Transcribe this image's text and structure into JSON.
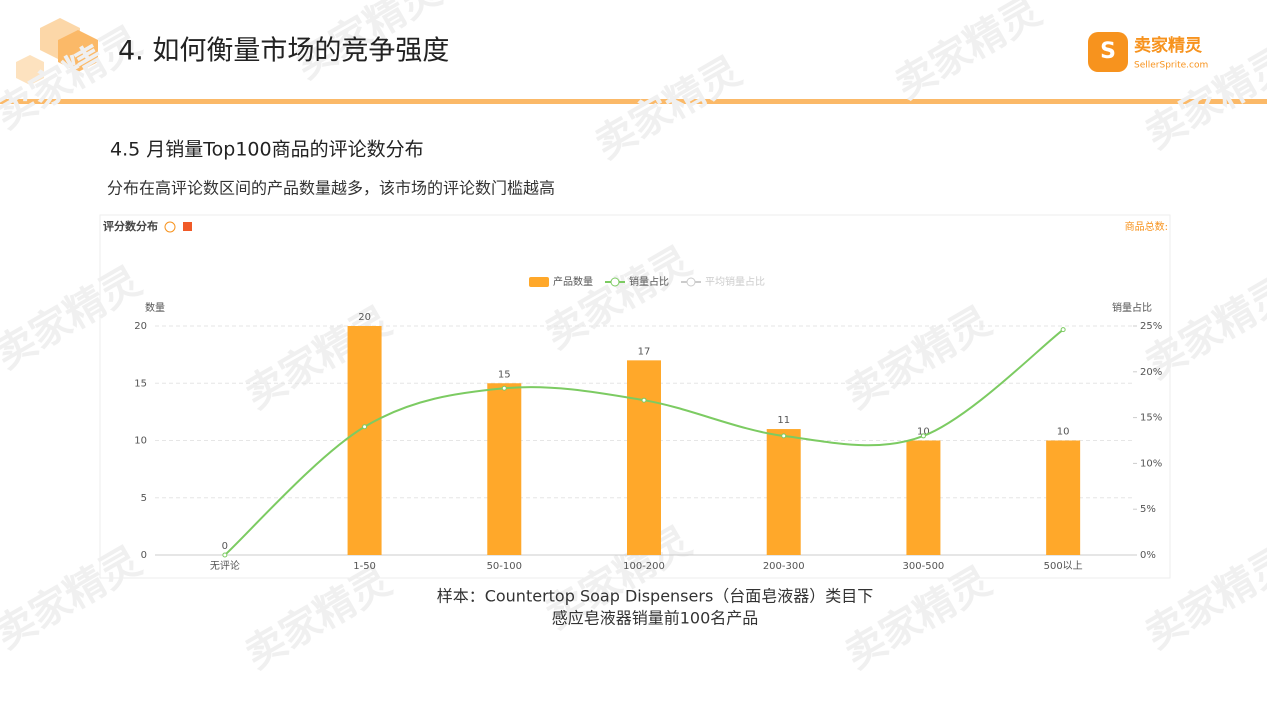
{
  "header": {
    "title": "4. 如何衡量市场的竞争强度",
    "logo_name": "卖家精灵",
    "logo_url": "SellerSprite.com"
  },
  "watermark": "卖家精灵",
  "section_title": "4.5 月销量Top100商品的评论数分布",
  "subtitle": "分布在高评论数区间的产品数量越多，该市场的评论数门槛越高",
  "caption": [
    "样本：Countertop Soap Dispensers（台面皂液器）类目下",
    "感应皂液器销量前100名产品"
  ],
  "chart_data": {
    "type": "bar",
    "title": "评分数分布",
    "total_label": "商品总数:",
    "categories": [
      "无评论",
      "1-50",
      "50-100",
      "100-200",
      "200-300",
      "300-500",
      "500以上"
    ],
    "series": [
      {
        "name": "产品数量",
        "color": "#ffa82a",
        "values": [
          0,
          20,
          15,
          17,
          11,
          10,
          10
        ]
      },
      {
        "name": "销量占比",
        "color": "#7ccb62",
        "axis": "y2",
        "values": [
          0,
          14,
          18.2,
          16.9,
          13,
          13,
          24.6
        ]
      }
    ],
    "inactive_legend": [
      "平均销量占比"
    ],
    "ylabel": "数量",
    "y2label": "销量占比",
    "ylim": [
      0,
      20
    ],
    "yticks": [
      0,
      5,
      10,
      15,
      20
    ],
    "y2lim": [
      0,
      25
    ],
    "y2ticks": [
      {
        "value": 0,
        "label": "0%"
      },
      {
        "value": 5,
        "label": "5%"
      },
      {
        "value": 10,
        "label": "10%"
      },
      {
        "value": 15,
        "label": "15%"
      },
      {
        "value": 20,
        "label": "20%"
      },
      {
        "value": 25,
        "label": "25%"
      }
    ],
    "grid": true
  }
}
